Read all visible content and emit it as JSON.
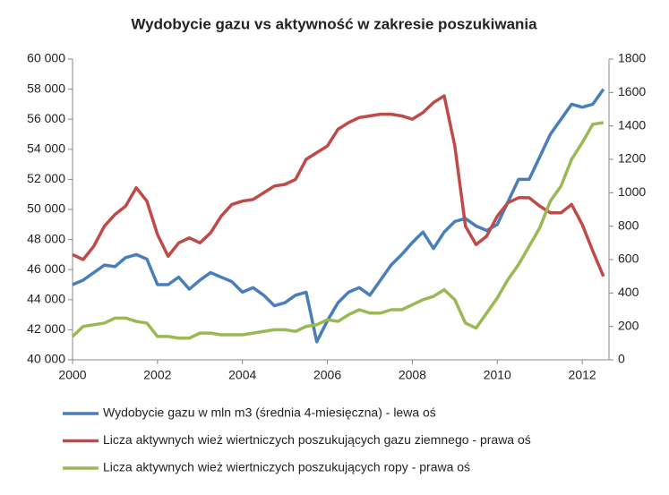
{
  "chart_data": {
    "type": "line",
    "title": "Wydobycie gazu vs aktywność w zakresie poszukiwania",
    "x": [
      2000,
      2000.25,
      2000.5,
      2000.75,
      2001,
      2001.25,
      2001.5,
      2001.75,
      2002,
      2002.25,
      2002.5,
      2002.75,
      2003,
      2003.25,
      2003.5,
      2003.75,
      2004,
      2004.25,
      2004.5,
      2004.75,
      2005,
      2005.25,
      2005.5,
      2005.75,
      2006,
      2006.25,
      2006.5,
      2006.75,
      2007,
      2007.25,
      2007.5,
      2007.75,
      2008,
      2008.25,
      2008.5,
      2008.75,
      2009,
      2009.25,
      2009.5,
      2009.75,
      2010,
      2010.25,
      2010.5,
      2010.75,
      2011,
      2011.25,
      2011.5,
      2011.75,
      2012,
      2012.25,
      2012.5
    ],
    "xlim": [
      2000,
      2012.63
    ],
    "xticks": [
      2000,
      2002,
      2004,
      2006,
      2008,
      2010,
      2012
    ],
    "ylim": [
      40000,
      60000
    ],
    "yticks": [
      {
        "value": 40000,
        "label": "40 000"
      },
      {
        "value": 42000,
        "label": "42 000"
      },
      {
        "value": 44000,
        "label": "44 000"
      },
      {
        "value": 46000,
        "label": "46 000"
      },
      {
        "value": 48000,
        "label": "48 000"
      },
      {
        "value": 50000,
        "label": "50 000"
      },
      {
        "value": 52000,
        "label": "52 000"
      },
      {
        "value": 54000,
        "label": "54 000"
      },
      {
        "value": 56000,
        "label": "56 000"
      },
      {
        "value": 58000,
        "label": "58 000"
      },
      {
        "value": 60000,
        "label": "60 000"
      }
    ],
    "y2lim": [
      0,
      1800
    ],
    "y2ticks": [
      0,
      200,
      400,
      600,
      800,
      1000,
      1200,
      1400,
      1600,
      1800
    ],
    "series": [
      {
        "name": "Wydobycie gazu w mln m3 (średnia 4-miesięczna) - lewa oś",
        "color": "#4a7ebb",
        "axis": "y",
        "values": [
          45000,
          45300,
          45800,
          46300,
          46200,
          46800,
          47000,
          46700,
          45000,
          45000,
          45500,
          44700,
          45300,
          45800,
          45500,
          45200,
          44500,
          44800,
          44300,
          43600,
          43800,
          44300,
          44500,
          41200,
          42600,
          43800,
          44500,
          44800,
          44300,
          45300,
          46300,
          47000,
          47800,
          48500,
          47400,
          48500,
          49200,
          49400,
          48900,
          48600,
          49000,
          50500,
          52000,
          52000,
          53500,
          55000,
          56000,
          57000,
          56800,
          57000,
          58000
        ]
      },
      {
        "name": "Licza aktywnych wież wiertniczych poszukujących gazu ziemnego - prawa oś",
        "color": "#be4b48",
        "axis": "y2",
        "values": [
          630,
          600,
          680,
          800,
          870,
          920,
          1030,
          950,
          750,
          620,
          700,
          730,
          700,
          760,
          860,
          930,
          950,
          960,
          1000,
          1040,
          1050,
          1080,
          1200,
          1240,
          1280,
          1380,
          1420,
          1450,
          1460,
          1470,
          1470,
          1460,
          1440,
          1480,
          1540,
          1580,
          1280,
          800,
          690,
          740,
          860,
          940,
          970,
          970,
          920,
          880,
          880,
          930,
          810,
          650,
          500
        ]
      },
      {
        "name": "Licza aktywnych wież wiertniczych poszukujących ropy - prawa oś",
        "color": "#98b954",
        "axis": "y2",
        "values": [
          140,
          200,
          210,
          220,
          250,
          250,
          230,
          220,
          140,
          140,
          130,
          130,
          160,
          160,
          150,
          150,
          150,
          160,
          170,
          180,
          180,
          170,
          200,
          210,
          240,
          230,
          270,
          300,
          280,
          280,
          300,
          300,
          330,
          360,
          380,
          420,
          360,
          220,
          190,
          280,
          370,
          480,
          570,
          680,
          790,
          950,
          1040,
          1200,
          1300,
          1410,
          1420
        ]
      }
    ]
  }
}
